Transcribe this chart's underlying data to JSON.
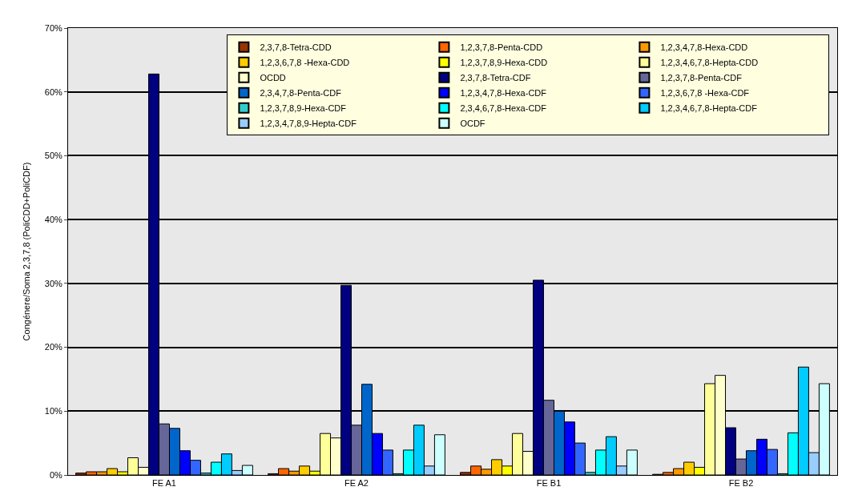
{
  "chart_data": {
    "type": "bar",
    "ylabel": "Congénere/Soma 2,3,7,8 (PoliCDD+PoliCDF)",
    "categories": [
      "FE A1",
      "FE A2",
      "FE B1",
      "FE B2"
    ],
    "ylim": [
      0,
      70
    ],
    "yticks": [
      {
        "value": 0,
        "label": "0%"
      },
      {
        "value": 10,
        "label": "10%"
      },
      {
        "value": 20,
        "label": "20%"
      },
      {
        "value": 30,
        "label": "30%"
      },
      {
        "value": 40,
        "label": "40%"
      },
      {
        "value": 50,
        "label": "50%"
      },
      {
        "value": 60,
        "label": "60%"
      },
      {
        "value": 70,
        "label": "70%"
      }
    ],
    "grid": "y",
    "legend": "top right",
    "series": [
      {
        "name": "2,3,7,8-Tetra-CDD",
        "color": "#993300",
        "values": [
          0.3,
          0.2,
          0.4,
          0.1
        ]
      },
      {
        "name": "1,2,3,7,8-Penta-CDD",
        "color": "#ff6600",
        "values": [
          0.5,
          1.0,
          1.4,
          0.4
        ]
      },
      {
        "name": "1,2,3,4,7,8-Hexa-CDD",
        "color": "#ff9900",
        "values": [
          0.5,
          0.6,
          0.9,
          1.0
        ]
      },
      {
        "name": "1,2,3,6,7,8 -Hexa-CDD",
        "color": "#ffcc00",
        "values": [
          1.0,
          1.4,
          2.4,
          2.0
        ]
      },
      {
        "name": "1,2,3,7,8,9-Hexa-CDD",
        "color": "#ffff00",
        "values": [
          0.5,
          0.6,
          1.4,
          1.2
        ]
      },
      {
        "name": "1,2,3,4,6,7,8-Hepta-CDD",
        "color": "#ffff99",
        "values": [
          2.7,
          6.5,
          6.5,
          14.3
        ]
      },
      {
        "name": "OCDD",
        "color": "#ffffcc",
        "values": [
          1.2,
          5.8,
          3.7,
          15.6
        ]
      },
      {
        "name": "2,3,7,8-Tetra-CDF",
        "color": "#000080",
        "values": [
          62.8,
          29.7,
          30.5,
          7.4
        ]
      },
      {
        "name": "1,2,3,7,8-Penta-CDF",
        "color": "#666699",
        "values": [
          8.0,
          7.8,
          11.7,
          2.5
        ]
      },
      {
        "name": "2,3,4,7,8-Penta-CDF",
        "color": "#0066cc",
        "values": [
          7.3,
          14.2,
          10.0,
          3.8
        ]
      },
      {
        "name": "1,2,3,4,7,8-Hexa-CDF",
        "color": "#0000ff",
        "values": [
          3.8,
          6.5,
          8.3,
          5.6
        ]
      },
      {
        "name": "1,2,3,6,7,8 -Hexa-CDF",
        "color": "#3366ff",
        "values": [
          2.3,
          3.9,
          5.0,
          4.0
        ]
      },
      {
        "name": "1,2,3,7,8,9-Hexa-CDF",
        "color": "#33cccc",
        "values": [
          0.3,
          0.2,
          0.4,
          0.2
        ]
      },
      {
        "name": "2,3,4,6,7,8-Hexa-CDF",
        "color": "#00ffff",
        "values": [
          2.0,
          3.9,
          3.9,
          6.6
        ]
      },
      {
        "name": "1,2,3,4,6,7,8-Hepta-CDF",
        "color": "#00ccff",
        "values": [
          3.3,
          7.8,
          6.0,
          16.9
        ]
      },
      {
        "name": "1,2,3,4,7,8,9-Hepta-CDF",
        "color": "#99ccff",
        "values": [
          0.7,
          1.4,
          1.4,
          3.5
        ]
      },
      {
        "name": "OCDF",
        "color": "#ccffff",
        "values": [
          1.5,
          6.3,
          3.9,
          14.3
        ]
      }
    ]
  }
}
